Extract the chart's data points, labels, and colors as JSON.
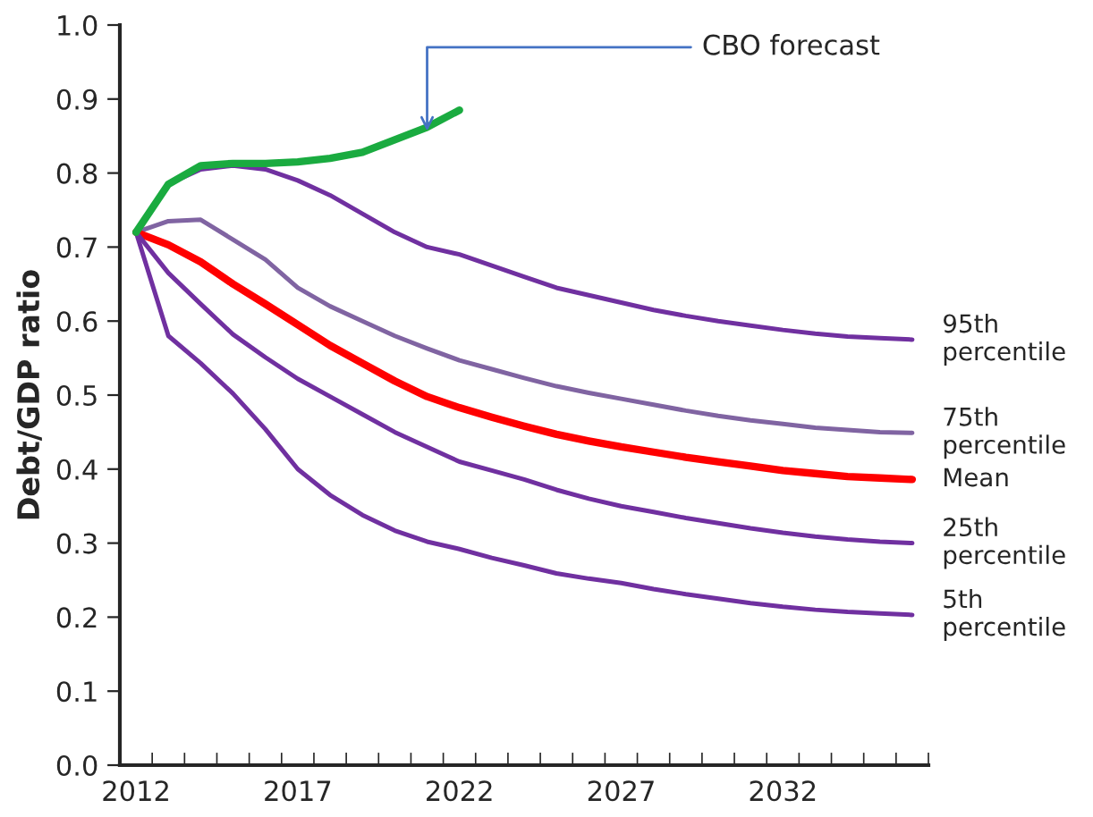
{
  "chart_data": {
    "type": "line",
    "ylabel": "Debt/GDP ratio",
    "x": [
      2012,
      2013,
      2014,
      2015,
      2016,
      2017,
      2018,
      2019,
      2020,
      2021,
      2022,
      2023,
      2024,
      2025,
      2026,
      2027,
      2028,
      2029,
      2030,
      2031,
      2032,
      2033,
      2034,
      2035,
      2036
    ],
    "series": [
      {
        "name": "95th\npercentile",
        "color": "#7030a0",
        "values": [
          0.72,
          0.785,
          0.805,
          0.81,
          0.805,
          0.79,
          0.77,
          0.745,
          0.72,
          0.7,
          0.69,
          0.675,
          0.66,
          0.645,
          0.635,
          0.625,
          0.615,
          0.607,
          0.6,
          0.594,
          0.588,
          0.583,
          0.579,
          0.577,
          0.575
        ]
      },
      {
        "name": "75th\npercentile",
        "color": "#8064a2",
        "values": [
          0.72,
          0.735,
          0.737,
          0.71,
          0.683,
          0.645,
          0.62,
          0.6,
          0.58,
          0.563,
          0.547,
          0.535,
          0.523,
          0.512,
          0.503,
          0.495,
          0.487,
          0.479,
          0.472,
          0.466,
          0.461,
          0.456,
          0.453,
          0.45,
          0.449
        ]
      },
      {
        "name": "Mean",
        "color": "#ff0000",
        "values": [
          0.72,
          0.703,
          0.68,
          0.65,
          0.623,
          0.595,
          0.567,
          0.543,
          0.519,
          0.498,
          0.483,
          0.47,
          0.458,
          0.447,
          0.438,
          0.43,
          0.423,
          0.416,
          0.41,
          0.404,
          0.398,
          0.394,
          0.39,
          0.388,
          0.386
        ]
      },
      {
        "name": "25th\npercentile",
        "color": "#7030a0",
        "values": [
          0.72,
          0.665,
          0.623,
          0.582,
          0.551,
          0.522,
          0.498,
          0.474,
          0.45,
          0.43,
          0.41,
          0.398,
          0.386,
          0.372,
          0.36,
          0.35,
          0.342,
          0.334,
          0.327,
          0.32,
          0.314,
          0.309,
          0.305,
          0.302,
          0.3
        ]
      },
      {
        "name": "5th\npercentile",
        "color": "#7030a0",
        "values": [
          0.72,
          0.58,
          0.543,
          0.502,
          0.454,
          0.4,
          0.365,
          0.338,
          0.317,
          0.302,
          0.292,
          0.28,
          0.27,
          0.259,
          0.252,
          0.246,
          0.238,
          0.231,
          0.225,
          0.219,
          0.214,
          0.21,
          0.207,
          0.205,
          0.203
        ]
      },
      {
        "color": "#1aab40",
        "x": [
          2012,
          2013,
          2014,
          2015,
          2016,
          2017,
          2018,
          2019,
          2020,
          2021,
          2022
        ],
        "values": [
          0.72,
          0.785,
          0.81,
          0.813,
          0.813,
          0.815,
          0.82,
          0.828,
          0.845,
          0.862,
          0.885
        ]
      }
    ],
    "annotations": [
      {
        "text": "CBO forecast",
        "x": 2021,
        "y": 0.85
      }
    ],
    "xlim": [
      2011.5,
      2036.5
    ],
    "xticks": [
      {
        "value": 2011.5,
        "label": null
      },
      {
        "value": 2012,
        "label": "2012"
      },
      {
        "value": 2012.5,
        "label": null
      },
      {
        "value": 2013.5,
        "label": null
      },
      {
        "value": 2014.5,
        "label": null
      },
      {
        "value": 2015.5,
        "label": null
      },
      {
        "value": 2016.5,
        "label": null
      },
      {
        "value": 2017,
        "label": "2017"
      },
      {
        "value": 2017.5,
        "label": null
      },
      {
        "value": 2018.5,
        "label": null
      },
      {
        "value": 2019.5,
        "label": null
      },
      {
        "value": 2020.5,
        "label": null
      },
      {
        "value": 2021.5,
        "label": null
      },
      {
        "value": 2022,
        "label": "2022"
      },
      {
        "value": 2022.5,
        "label": null
      },
      {
        "value": 2023.5,
        "label": null
      },
      {
        "value": 2024.5,
        "label": null
      },
      {
        "value": 2025.5,
        "label": null
      },
      {
        "value": 2026.5,
        "label": null
      },
      {
        "value": 2027,
        "label": "2027"
      },
      {
        "value": 2027.5,
        "label": null
      },
      {
        "value": 2028.5,
        "label": null
      },
      {
        "value": 2029.5,
        "label": null
      },
      {
        "value": 2030.5,
        "label": null
      },
      {
        "value": 2031.5,
        "label": null
      },
      {
        "value": 2032,
        "label": "2032"
      },
      {
        "value": 2032.5,
        "label": null
      },
      {
        "value": 2033.5,
        "label": null
      },
      {
        "value": 2034.5,
        "label": null
      },
      {
        "value": 2035.5,
        "label": null
      },
      {
        "value": 2036.5,
        "label": null
      }
    ],
    "ylim": [
      0.0,
      1.0
    ],
    "yticks": [
      {
        "value": 0,
        "label": "0.0"
      },
      0.1,
      0.2,
      0.3,
      0.4,
      0.5,
      0.6,
      0.7,
      0.8,
      0.9,
      {
        "value": 1,
        "label": "1.0"
      }
    ],
    "grid": false,
    "legend": false,
    "marker": "none",
    "line_style": "solid"
  }
}
